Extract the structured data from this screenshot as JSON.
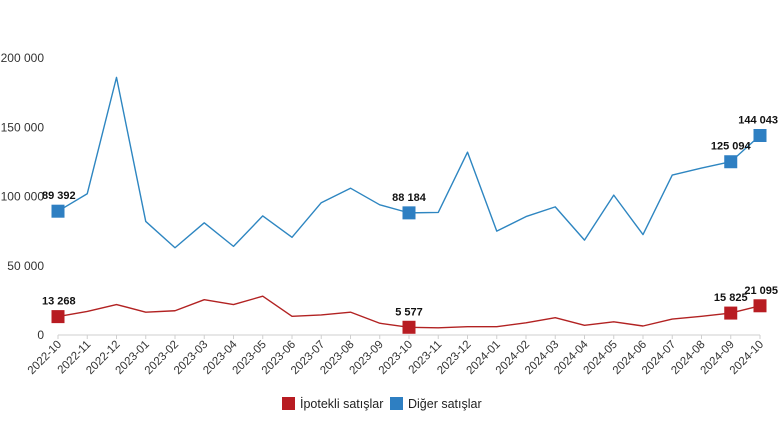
{
  "chart_data": {
    "type": "line",
    "title": "",
    "xlabel": "",
    "ylabel": "",
    "ylim": [
      0,
      200000
    ],
    "yticks": [
      {
        "value": 0,
        "label": "0"
      },
      {
        "value": 50000,
        "label": "50 000"
      },
      {
        "value": 100000,
        "label": "100 000"
      },
      {
        "value": 150000,
        "label": "150 000"
      },
      {
        "value": 200000,
        "label": "200 000"
      }
    ],
    "grid": false,
    "legend_position": "bottom",
    "categories": [
      "2022-10",
      "2022-11",
      "2022-12",
      "2023-01",
      "2023-02",
      "2023-03",
      "2023-04",
      "2023-05",
      "2023-06",
      "2023-07",
      "2023-08",
      "2023-09",
      "2023-10",
      "2023-11",
      "2023-12",
      "2024-01",
      "2024-02",
      "2024-03",
      "2024-04",
      "2024-05",
      "2024-06",
      "2024-07",
      "2024-08",
      "2024-09",
      "2024-10"
    ],
    "series": [
      {
        "name": "İpotekli satışlar",
        "color": "#b22222",
        "marker_color": "#b81c22",
        "values": [
          13268,
          17000,
          22000,
          16500,
          17500,
          25500,
          22000,
          28000,
          13500,
          14500,
          16500,
          8500,
          5577,
          5200,
          6000,
          6000,
          8800,
          12500,
          7000,
          9500,
          6500,
          11500,
          13500,
          15825,
          21095
        ],
        "labels": [
          {
            "index": 0,
            "text": "13 268"
          },
          {
            "index": 12,
            "text": "5 577"
          },
          {
            "index": 23,
            "text": "15 825"
          },
          {
            "index": 24,
            "text": "21 095"
          }
        ]
      },
      {
        "name": "Diğer satışlar",
        "color": "#2e86c1",
        "marker_color": "#2e7fc2",
        "values": [
          89392,
          102000,
          186000,
          82000,
          63000,
          81000,
          64000,
          86000,
          70500,
          95500,
          106000,
          94000,
          88184,
          88500,
          132000,
          75000,
          85500,
          92500,
          68500,
          101000,
          72500,
          115500,
          120500,
          125094,
          144043
        ],
        "labels": [
          {
            "index": 0,
            "text": "89 392"
          },
          {
            "index": 12,
            "text": "88 184"
          },
          {
            "index": 23,
            "text": "125 094"
          },
          {
            "index": 24,
            "text": "144 043"
          }
        ]
      }
    ]
  }
}
